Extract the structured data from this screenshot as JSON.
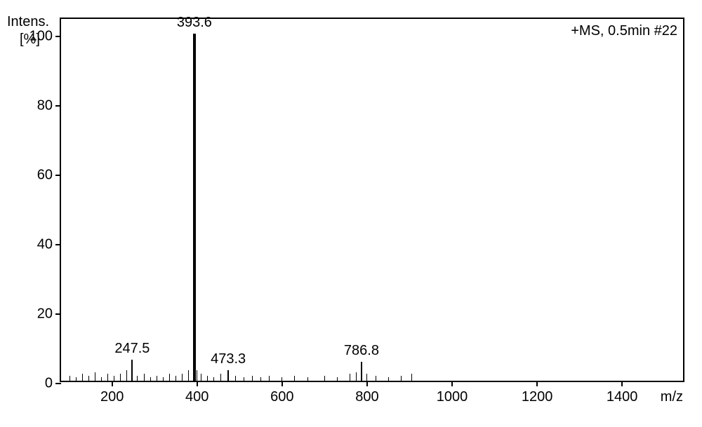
{
  "chart": {
    "type": "mass-spectrum",
    "annotation": "+MS, 0.5min #22",
    "y_axis": {
      "label_line1": "Intens.",
      "label_line2": "[%]",
      "min": 0,
      "max": 105,
      "ticks": [
        0,
        20,
        40,
        60,
        80,
        100
      ],
      "fontsize": 20
    },
    "x_axis": {
      "label": "m/z",
      "min": 80,
      "max": 1550,
      "ticks": [
        200,
        400,
        600,
        800,
        1000,
        1200,
        1400
      ],
      "fontsize": 20
    },
    "peaks": [
      {
        "mz": 247.5,
        "intensity": 6,
        "label": "247.5"
      },
      {
        "mz": 393.6,
        "intensity": 100,
        "label": "393.6"
      },
      {
        "mz": 473.3,
        "intensity": 3,
        "label": "473.3"
      },
      {
        "mz": 786.8,
        "intensity": 5.5,
        "label": "786.8"
      }
    ],
    "noise_peaks": [
      {
        "mz": 100,
        "intensity": 1.5
      },
      {
        "mz": 115,
        "intensity": 1
      },
      {
        "mz": 130,
        "intensity": 2
      },
      {
        "mz": 145,
        "intensity": 1.5
      },
      {
        "mz": 160,
        "intensity": 2.5
      },
      {
        "mz": 175,
        "intensity": 1
      },
      {
        "mz": 190,
        "intensity": 2
      },
      {
        "mz": 205,
        "intensity": 1.5
      },
      {
        "mz": 220,
        "intensity": 2
      },
      {
        "mz": 235,
        "intensity": 3
      },
      {
        "mz": 260,
        "intensity": 1.5
      },
      {
        "mz": 275,
        "intensity": 2
      },
      {
        "mz": 290,
        "intensity": 1
      },
      {
        "mz": 305,
        "intensity": 1.5
      },
      {
        "mz": 320,
        "intensity": 1
      },
      {
        "mz": 335,
        "intensity": 2
      },
      {
        "mz": 350,
        "intensity": 1.5
      },
      {
        "mz": 365,
        "intensity": 2
      },
      {
        "mz": 380,
        "intensity": 3
      },
      {
        "mz": 395,
        "intensity": 4
      },
      {
        "mz": 400,
        "intensity": 3
      },
      {
        "mz": 410,
        "intensity": 2
      },
      {
        "mz": 425,
        "intensity": 1.5
      },
      {
        "mz": 440,
        "intensity": 1
      },
      {
        "mz": 455,
        "intensity": 2
      },
      {
        "mz": 490,
        "intensity": 1.5
      },
      {
        "mz": 510,
        "intensity": 1
      },
      {
        "mz": 530,
        "intensity": 1.5
      },
      {
        "mz": 550,
        "intensity": 1
      },
      {
        "mz": 570,
        "intensity": 1.5
      },
      {
        "mz": 600,
        "intensity": 1
      },
      {
        "mz": 630,
        "intensity": 1.5
      },
      {
        "mz": 660,
        "intensity": 1
      },
      {
        "mz": 700,
        "intensity": 1.5
      },
      {
        "mz": 730,
        "intensity": 1
      },
      {
        "mz": 760,
        "intensity": 2
      },
      {
        "mz": 775,
        "intensity": 2.5
      },
      {
        "mz": 800,
        "intensity": 2
      },
      {
        "mz": 820,
        "intensity": 1.5
      },
      {
        "mz": 850,
        "intensity": 1
      },
      {
        "mz": 880,
        "intensity": 1.5
      },
      {
        "mz": 905,
        "intensity": 2
      }
    ],
    "colors": {
      "background": "#ffffff",
      "axis": "#000000",
      "peak": "#000000",
      "text": "#000000"
    },
    "border_width": 2,
    "peak_line_width": 2
  }
}
